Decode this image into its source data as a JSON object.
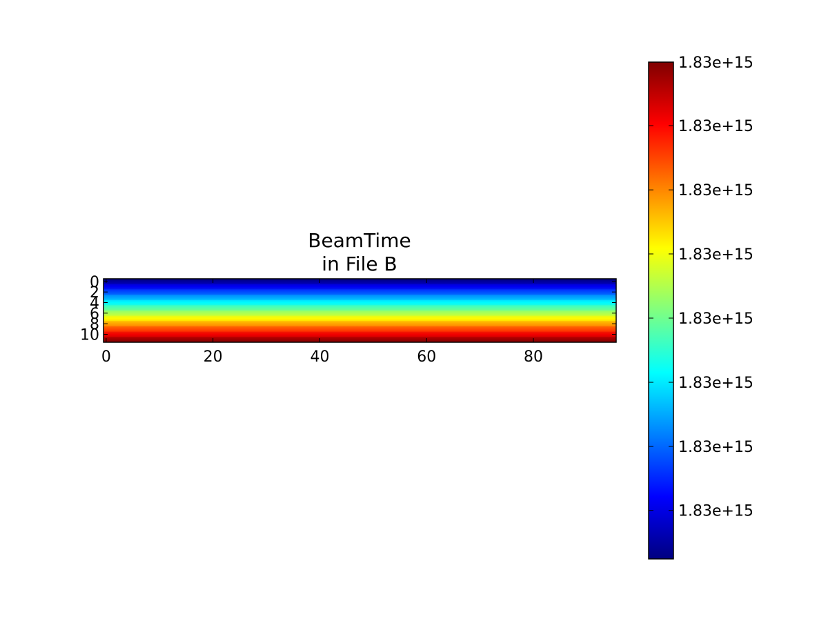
{
  "chart_data": {
    "type": "heatmap",
    "title_lines": [
      "BeamTime",
      "in File B"
    ],
    "xlabel": "",
    "ylabel": "",
    "xlim": [
      -0.5,
      95.5
    ],
    "ylim": [
      11.5,
      -0.5
    ],
    "x_ticks": [
      {
        "value": 0,
        "label": "0"
      },
      {
        "value": 20,
        "label": "20"
      },
      {
        "value": 40,
        "label": "40"
      },
      {
        "value": 60,
        "label": "60"
      },
      {
        "value": 80,
        "label": "80"
      }
    ],
    "y_ticks": [
      {
        "value": 0,
        "label": "0"
      },
      {
        "value": 2,
        "label": "2"
      },
      {
        "value": 4,
        "label": "4"
      },
      {
        "value": 6,
        "label": "6"
      },
      {
        "value": 8,
        "label": "8"
      },
      {
        "value": 10,
        "label": "10"
      }
    ],
    "n_rows": 12,
    "n_cols": 96,
    "row_values": [
      0.0,
      0.0909,
      0.1818,
      0.2727,
      0.3636,
      0.4545,
      0.5455,
      0.6364,
      0.7273,
      0.8182,
      0.9091,
      1.0
    ],
    "colormap": "jet",
    "colorbar": {
      "range": [
        0,
        1
      ],
      "ticks": [
        {
          "value": 0.0976,
          "label": "1.83e+15"
        },
        {
          "value": 0.2264,
          "label": "1.83e+15"
        },
        {
          "value": 0.3555,
          "label": "1.83e+15"
        },
        {
          "value": 0.4847,
          "label": "1.83e+15"
        },
        {
          "value": 0.6139,
          "label": "1.83e+15"
        },
        {
          "value": 0.7428,
          "label": "1.83e+15"
        },
        {
          "value": 0.872,
          "label": "1.83e+15"
        },
        {
          "value": 1.0,
          "label": "1.83e+15"
        }
      ]
    },
    "grid": false
  }
}
